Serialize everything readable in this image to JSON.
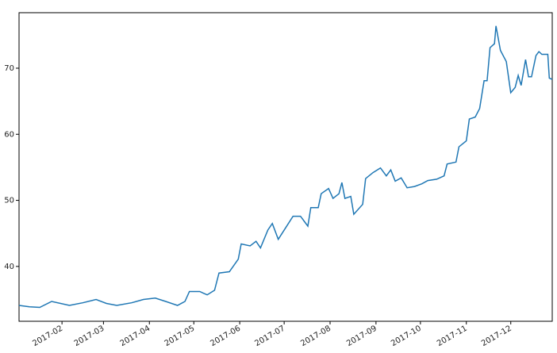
{
  "chart_data": {
    "type": "line",
    "x": [
      "2017-01-03",
      "2017-01-10",
      "2017-01-17",
      "2017-01-25",
      "2017-02-06",
      "2017-02-15",
      "2017-02-24",
      "2017-03-03",
      "2017-03-10",
      "2017-03-20",
      "2017-03-28",
      "2017-04-05",
      "2017-04-12",
      "2017-04-20",
      "2017-04-25",
      "2017-04-28",
      "2017-05-05",
      "2017-05-10",
      "2017-05-15",
      "2017-05-18",
      "2017-05-25",
      "2017-05-31",
      "2017-06-02",
      "2017-06-08",
      "2017-06-12",
      "2017-06-15",
      "2017-06-20",
      "2017-06-23",
      "2017-06-27",
      "2017-07-03",
      "2017-07-07",
      "2017-07-12",
      "2017-07-17",
      "2017-07-19",
      "2017-07-24",
      "2017-07-26",
      "2017-07-31",
      "2017-08-03",
      "2017-08-07",
      "2017-08-09",
      "2017-08-11",
      "2017-08-15",
      "2017-08-17",
      "2017-08-23",
      "2017-08-25",
      "2017-08-30",
      "2017-09-04",
      "2017-09-08",
      "2017-09-11",
      "2017-09-14",
      "2017-09-18",
      "2017-09-22",
      "2017-09-27",
      "2017-10-02",
      "2017-10-06",
      "2017-10-12",
      "2017-10-17",
      "2017-10-19",
      "2017-10-25",
      "2017-10-27",
      "2017-11-01",
      "2017-11-03",
      "2017-11-07",
      "2017-11-10",
      "2017-11-13",
      "2017-11-15",
      "2017-11-17",
      "2017-11-20",
      "2017-11-21",
      "2017-11-24",
      "2017-11-28",
      "2017-12-01",
      "2017-12-04",
      "2017-12-06",
      "2017-12-08",
      "2017-12-11",
      "2017-12-13",
      "2017-12-15",
      "2017-12-18",
      "2017-12-20",
      "2017-12-22",
      "2017-12-26",
      "2017-12-27",
      "2017-12-29"
    ],
    "series": [
      {
        "color": "#1f77b4",
        "values": [
          34.1,
          33.9,
          33.8,
          34.7,
          34.1,
          34.5,
          35.0,
          34.4,
          34.1,
          34.5,
          35.0,
          35.2,
          34.7,
          34.1,
          34.7,
          36.2,
          36.2,
          35.7,
          36.4,
          39.0,
          39.2,
          41.1,
          43.4,
          43.1,
          43.8,
          42.8,
          45.5,
          46.5,
          44.1,
          46.2,
          47.6,
          47.6,
          46.1,
          48.9,
          48.9,
          51.0,
          51.8,
          50.3,
          51.0,
          52.7,
          50.3,
          50.6,
          47.9,
          49.4,
          53.3,
          54.2,
          54.9,
          53.7,
          54.6,
          52.9,
          53.4,
          51.9,
          52.1,
          52.5,
          53.0,
          53.2,
          53.7,
          55.5,
          55.8,
          58.1,
          59.0,
          62.3,
          62.6,
          63.9,
          68.1,
          68.1,
          73.1,
          73.7,
          76.4,
          72.7,
          71.0,
          66.3,
          67.1,
          68.9,
          67.4,
          71.3,
          68.7,
          68.7,
          71.9,
          72.5,
          72.1,
          72.1,
          68.5,
          68.3
        ]
      }
    ],
    "xlim": [
      "2017-01-03",
      "2017-12-29"
    ],
    "xticks": [
      {
        "value": "2017-02-01",
        "label": "2017-02"
      },
      {
        "value": "2017-03-01",
        "label": "2017-03"
      },
      {
        "value": "2017-04-01",
        "label": "2017-04"
      },
      {
        "value": "2017-05-01",
        "label": "2017-05"
      },
      {
        "value": "2017-06-01",
        "label": "2017-06"
      },
      {
        "value": "2017-07-01",
        "label": "2017-07"
      },
      {
        "value": "2017-08-01",
        "label": "2017-08"
      },
      {
        "value": "2017-09-01",
        "label": "2017-09"
      },
      {
        "value": "2017-10-01",
        "label": "2017-10"
      },
      {
        "value": "2017-11-01",
        "label": "2017-11"
      },
      {
        "value": "2017-12-01",
        "label": "2017-12"
      }
    ],
    "ylim": [
      31.7,
      78.4
    ],
    "yticks": [
      40,
      50,
      60,
      70
    ],
    "grid": false
  }
}
